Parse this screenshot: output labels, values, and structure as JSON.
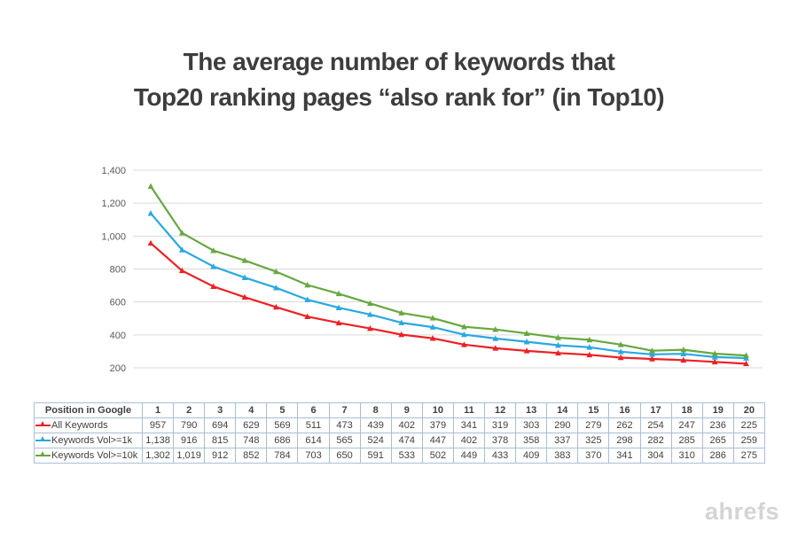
{
  "title": {
    "line1": "The average number of keywords that",
    "line2": "Top20 ranking pages “also rank for” (in Top10)"
  },
  "watermark": "ahrefs",
  "chart_data": {
    "type": "line",
    "title": "The average number of keywords that Top20 ranking pages “also rank for” (in Top10)",
    "xlabel": "Position in Google",
    "ylabel": "",
    "x": [
      1,
      2,
      3,
      4,
      5,
      6,
      7,
      8,
      9,
      10,
      11,
      12,
      13,
      14,
      15,
      16,
      17,
      18,
      19,
      20
    ],
    "series": [
      {
        "name": "All Keywords",
        "color": "#ed2024",
        "values": [
          957,
          790,
          694,
          629,
          569,
          511,
          473,
          439,
          402,
          379,
          341,
          319,
          303,
          290,
          279,
          262,
          254,
          247,
          236,
          225
        ]
      },
      {
        "name": "Keywords Vol>=1k",
        "color": "#2aa8e0",
        "values": [
          1138,
          916,
          815,
          748,
          686,
          614,
          565,
          524,
          474,
          447,
          402,
          378,
          358,
          337,
          325,
          298,
          282,
          285,
          265,
          259
        ]
      },
      {
        "name": "Keywords Vol>=10k",
        "color": "#67a73f",
        "values": [
          1302,
          1019,
          912,
          852,
          784,
          703,
          650,
          591,
          533,
          502,
          449,
          433,
          409,
          383,
          370,
          341,
          304,
          310,
          286,
          275
        ]
      }
    ],
    "ylim": [
      200,
      1400
    ],
    "yticks": [
      200,
      400,
      600,
      800,
      1000,
      1200,
      1400
    ],
    "ytick_labels": [
      "200",
      "400",
      "600",
      "800",
      "1,000",
      "1,200",
      "1,400"
    ],
    "grid": true,
    "gridline_color": "#d9d9d9",
    "tick_label_color": "#595959",
    "legend_position": "table-row-labels",
    "marker": "triangle-up"
  },
  "table": {
    "header_label": "Position in Google"
  }
}
